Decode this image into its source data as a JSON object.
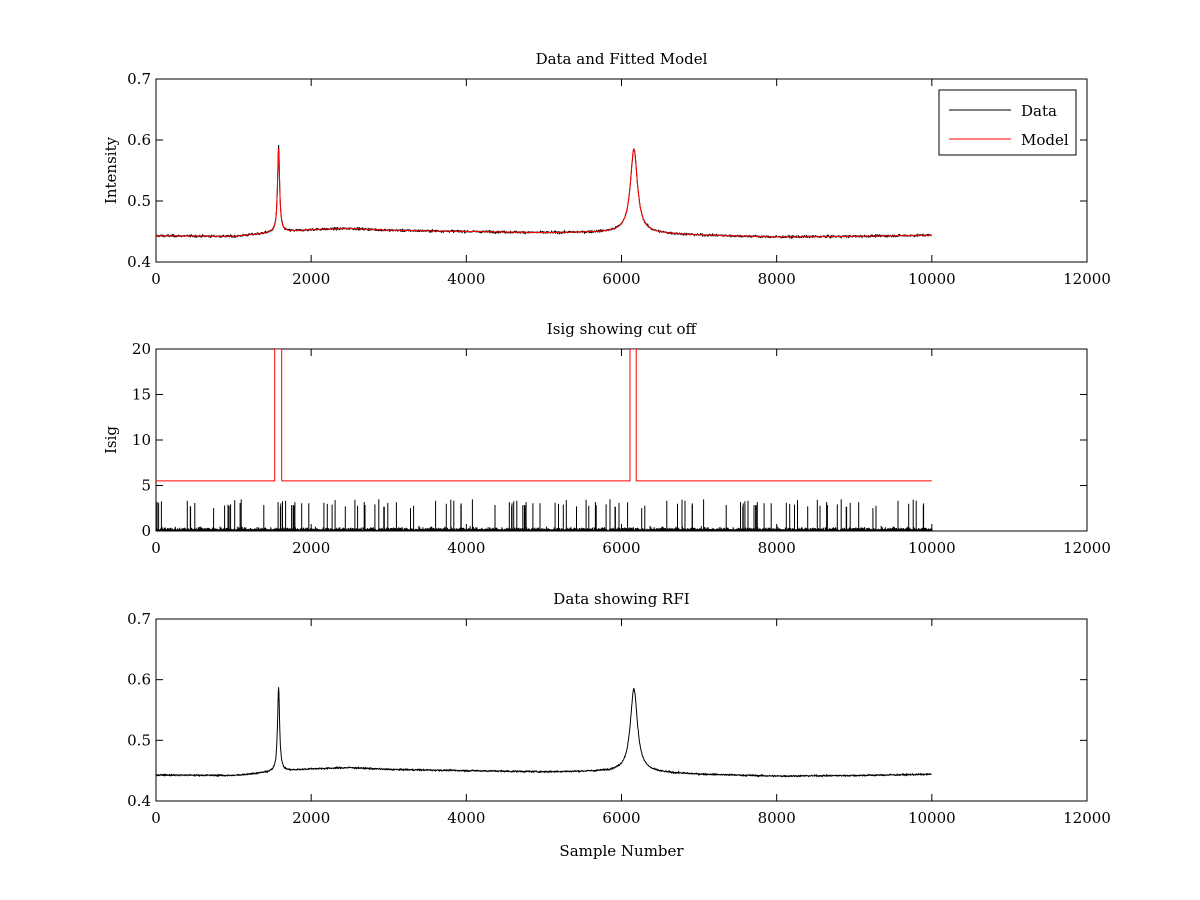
{
  "chart_data": [
    {
      "type": "line",
      "title": "Data and Fitted Model",
      "xlabel": "",
      "ylabel": "Intensity",
      "xlim": [
        0,
        12000
      ],
      "ylim": [
        0.4,
        0.7
      ],
      "x_ticks": [
        0,
        2000,
        4000,
        6000,
        8000,
        10000,
        12000
      ],
      "x_tick_labels": [
        "0",
        "2000",
        "4000",
        "6000",
        "8000",
        "10000",
        "12000"
      ],
      "y_ticks": [
        0.4,
        0.5,
        0.6,
        0.7
      ],
      "y_tick_labels": [
        "0.4",
        "0.5",
        "0.6",
        "0.7"
      ],
      "legend": {
        "position": "top-right",
        "entries": [
          "Data",
          "Model"
        ]
      },
      "series": [
        {
          "name": "Data",
          "color": "#000000",
          "sample_count": 10000,
          "baseline_points": [
            [
              0,
              0.443
            ],
            [
              1000,
              0.442
            ],
            [
              1500,
              0.448
            ],
            [
              2000,
              0.453
            ],
            [
              2500,
              0.455
            ],
            [
              3000,
              0.452
            ],
            [
              4000,
              0.45
            ],
            [
              5000,
              0.448
            ],
            [
              6000,
              0.449
            ],
            [
              7000,
              0.444
            ],
            [
              8000,
              0.441
            ],
            [
              9000,
              0.442
            ],
            [
              10000,
              0.444
            ]
          ],
          "noise_amplitude": 0.004,
          "peaks": [
            {
              "x": 1580,
              "y": 0.59
            },
            {
              "x": 6160,
              "y": 0.585
            }
          ]
        },
        {
          "name": "Model",
          "color": "#ff0000",
          "baseline_points": [
            [
              0,
              0.443
            ],
            [
              1000,
              0.442
            ],
            [
              1500,
              0.448
            ],
            [
              2000,
              0.453
            ],
            [
              2500,
              0.455
            ],
            [
              3000,
              0.452
            ],
            [
              4000,
              0.45
            ],
            [
              5000,
              0.448
            ],
            [
              6000,
              0.449
            ],
            [
              7000,
              0.444
            ],
            [
              8000,
              0.441
            ],
            [
              9000,
              0.442
            ],
            [
              10000,
              0.444
            ]
          ],
          "peaks": [
            {
              "x": 1580,
              "y": 0.585
            },
            {
              "x": 6160,
              "y": 0.585
            }
          ]
        }
      ]
    },
    {
      "type": "line",
      "title": "Isig showing cut off",
      "xlabel": "",
      "ylabel": "Isig",
      "xlim": [
        0,
        12000
      ],
      "ylim": [
        0,
        20
      ],
      "x_ticks": [
        0,
        2000,
        4000,
        6000,
        8000,
        10000,
        12000
      ],
      "x_tick_labels": [
        "0",
        "2000",
        "4000",
        "6000",
        "8000",
        "10000",
        "12000"
      ],
      "y_ticks": [
        0,
        5,
        10,
        15,
        20
      ],
      "y_tick_labels": [
        "0",
        "5",
        "10",
        "15",
        "20"
      ],
      "series": [
        {
          "color": "#000000",
          "sample_count": 10000,
          "range": [
            0,
            3.5
          ],
          "typical_max": 2.5
        },
        {
          "color": "#ff0000",
          "points": [
            [
              0,
              5.5
            ],
            [
              1530,
              5.5
            ],
            [
              1530,
              20
            ],
            [
              1620,
              20
            ],
            [
              1620,
              5.5
            ],
            [
              6110,
              5.5
            ],
            [
              6110,
              20
            ],
            [
              6190,
              20
            ],
            [
              6190,
              5.5
            ],
            [
              10000,
              5.5
            ]
          ]
        }
      ]
    },
    {
      "type": "line",
      "title": "Data showing RFI",
      "xlabel": "Sample Number",
      "ylabel": "",
      "xlim": [
        0,
        12000
      ],
      "ylim": [
        0.4,
        0.7
      ],
      "x_ticks": [
        0,
        2000,
        4000,
        6000,
        8000,
        10000,
        12000
      ],
      "x_tick_labels": [
        "0",
        "2000",
        "4000",
        "6000",
        "8000",
        "10000",
        "12000"
      ],
      "y_ticks": [
        0.4,
        0.5,
        0.6,
        0.7
      ],
      "y_tick_labels": [
        "0.4",
        "0.5",
        "0.6",
        "0.7"
      ],
      "series": [
        {
          "color": "#000000",
          "sample_count": 10000,
          "baseline_points": [
            [
              0,
              0.443
            ],
            [
              1000,
              0.442
            ],
            [
              1500,
              0.448
            ],
            [
              2000,
              0.453
            ],
            [
              2500,
              0.455
            ],
            [
              3000,
              0.452
            ],
            [
              4000,
              0.45
            ],
            [
              5000,
              0.448
            ],
            [
              6000,
              0.449
            ],
            [
              7000,
              0.444
            ],
            [
              8000,
              0.441
            ],
            [
              9000,
              0.442
            ],
            [
              10000,
              0.444
            ]
          ],
          "noise_amplitude": 0.003,
          "peaks": [
            {
              "x": 1580,
              "y": 0.588
            },
            {
              "x": 6160,
              "y": 0.585
            }
          ]
        }
      ]
    }
  ]
}
